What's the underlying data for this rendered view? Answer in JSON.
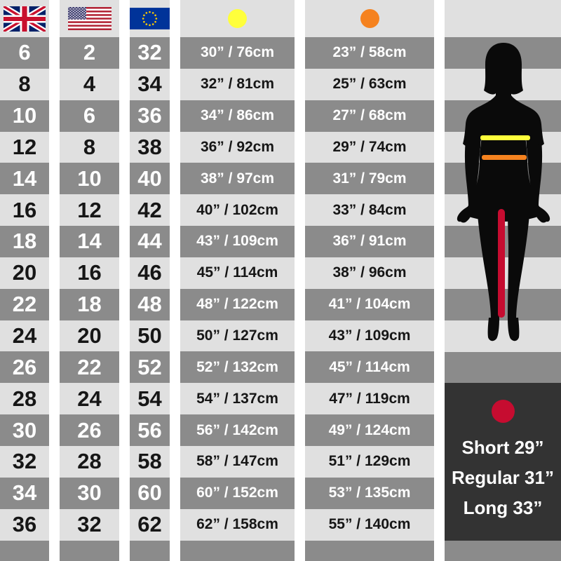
{
  "header": {
    "region_icons": [
      {
        "icon": "uk-flag",
        "region": "UK"
      },
      {
        "icon": "us-flag",
        "region": "US"
      },
      {
        "icon": "eu-flag",
        "region": "EU"
      }
    ],
    "measure_markers": [
      {
        "icon": "bust-marker-dot",
        "color": "#ffff3b"
      },
      {
        "icon": "waist-marker-dot",
        "color": "#f5821f"
      }
    ]
  },
  "chart_data": {
    "type": "table",
    "columns": [
      "uk-flag",
      "us-flag",
      "eu-flag",
      "bust-marker-yellow",
      "waist-marker-orange"
    ],
    "rows": [
      [
        "6",
        "2",
        "32",
        "30” / 76cm",
        "23” / 58cm"
      ],
      [
        "8",
        "4",
        "34",
        "32” / 81cm",
        "25” / 63cm"
      ],
      [
        "10",
        "6",
        "36",
        "34” / 86cm",
        "27” / 68cm"
      ],
      [
        "12",
        "8",
        "38",
        "36” / 92cm",
        "29” / 74cm"
      ],
      [
        "14",
        "10",
        "40",
        "38” / 97cm",
        "31” / 79cm"
      ],
      [
        "16",
        "12",
        "42",
        "40” / 102cm",
        "33” / 84cm"
      ],
      [
        "18",
        "14",
        "44",
        "43” / 109cm",
        "36” / 91cm"
      ],
      [
        "20",
        "16",
        "46",
        "45” / 114cm",
        "38” / 96cm"
      ],
      [
        "22",
        "18",
        "48",
        "48” / 122cm",
        "41” / 104cm"
      ],
      [
        "24",
        "20",
        "50",
        "50” / 127cm",
        "43” / 109cm"
      ],
      [
        "26",
        "22",
        "52",
        "52” / 132cm",
        "45” / 114cm"
      ],
      [
        "28",
        "24",
        "54",
        "54” / 137cm",
        "47” / 119cm"
      ],
      [
        "30",
        "26",
        "56",
        "56” / 142cm",
        "49” / 124cm"
      ],
      [
        "32",
        "28",
        "58",
        "58” / 147cm",
        "51” / 129cm"
      ],
      [
        "34",
        "30",
        "60",
        "60” / 152cm",
        "53” / 135cm"
      ],
      [
        "36",
        "32",
        "62",
        "62” / 158cm",
        "55” / 140cm"
      ]
    ]
  },
  "leg_length_panel": {
    "marker_icon": "inseam-marker-dot",
    "marker_color": "#c60c30",
    "options": [
      "Short 29”",
      "Regular 31”",
      "Long 33”"
    ]
  },
  "figure": {
    "icon": "female-silhouette",
    "bust_line_color": "#ffff3b",
    "waist_line_color": "#f5821f",
    "inseam_line_color": "#c60c30"
  },
  "colors": {
    "row_dark": "#8b8b8b",
    "row_light": "#e0e0e0",
    "gap_white": "#ffffff",
    "panel_dark": "#333333"
  }
}
